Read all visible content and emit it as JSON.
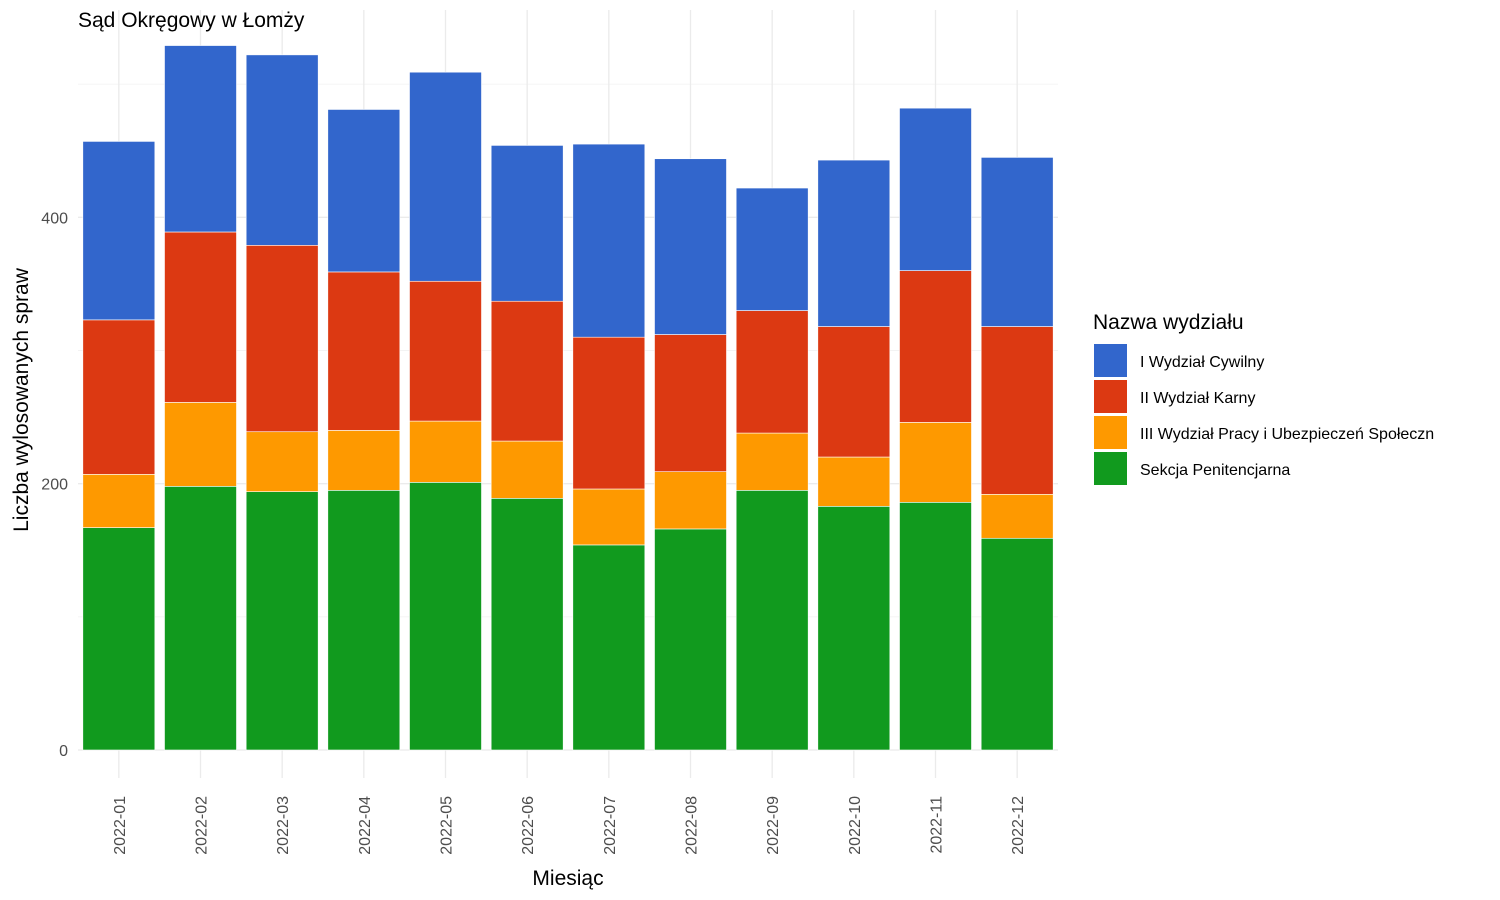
{
  "chart_data": {
    "type": "bar",
    "stacked": true,
    "title": "Sąd Okręgowy w Łomży",
    "xlabel": "Miesiąc",
    "ylabel": "Liczba wylosowanych spraw",
    "ylim": [
      0,
      550
    ],
    "yticks": [
      0,
      200,
      400
    ],
    "grid": true,
    "legend": {
      "title": "Nazwa wydziału",
      "position": "right"
    },
    "categories": [
      "2022-01",
      "2022-02",
      "2022-03",
      "2022-04",
      "2022-05",
      "2022-06",
      "2022-07",
      "2022-08",
      "2022-09",
      "2022-10",
      "2022-11",
      "2022-12"
    ],
    "series": [
      {
        "name": "Sekcja Penitencjarna",
        "color": "#119a1e",
        "values": [
          167,
          198,
          194,
          195,
          201,
          189,
          154,
          166,
          195,
          183,
          186,
          159
        ]
      },
      {
        "name": "III Wydział Pracy i Ubezpieczeń Społeczn",
        "color": "#fe9900",
        "values": [
          40,
          63,
          45,
          45,
          46,
          43,
          42,
          43,
          43,
          37,
          60,
          33
        ]
      },
      {
        "name": "II Wydział Karny",
        "color": "#dc3912",
        "values": [
          116,
          128,
          140,
          119,
          105,
          105,
          114,
          103,
          92,
          98,
          114,
          126
        ]
      },
      {
        "name": "I Wydział Cywilny",
        "color": "#3266cc",
        "values": [
          134,
          140,
          143,
          122,
          157,
          117,
          145,
          132,
          92,
          125,
          122,
          127
        ]
      }
    ],
    "legend_order": [
      "I Wydział Cywilny",
      "II Wydział Karny",
      "III Wydział Pracy i Ubezpieczeń Społeczn",
      "Sekcja Penitencjarna"
    ]
  }
}
